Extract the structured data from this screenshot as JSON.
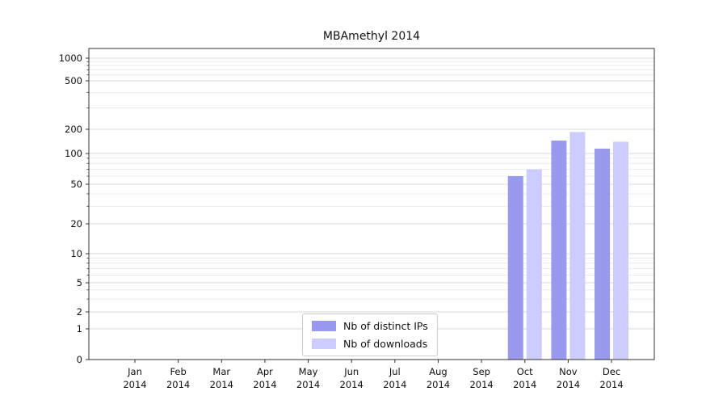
{
  "chart_data": {
    "type": "bar",
    "title": "MBAmethyl 2014",
    "categories": [
      "Jan 2014",
      "Feb 2014",
      "Mar 2014",
      "Apr 2014",
      "May 2014",
      "Jun 2014",
      "Jul 2014",
      "Aug 2014",
      "Sep 2014",
      "Oct 2014",
      "Nov 2014",
      "Dec 2014"
    ],
    "series": [
      {
        "name": "Nb of distinct IPs",
        "color": "#9999ee",
        "values": [
          0,
          0,
          0,
          0,
          0,
          0,
          0,
          0,
          0,
          60,
          145,
          115
        ]
      },
      {
        "name": "Nb of downloads",
        "color": "#ccccff",
        "values": [
          0,
          0,
          0,
          0,
          0,
          0,
          0,
          0,
          0,
          70,
          185,
          140
        ]
      }
    ],
    "y_axis": {
      "scale": "log",
      "tick_labels": [
        "0",
        "1",
        "2",
        "5",
        "10",
        "20",
        "50",
        "100",
        "200",
        "500",
        "1000"
      ],
      "tick_values": [
        0,
        1,
        2,
        5,
        10,
        20,
        50,
        100,
        200,
        500,
        1000
      ],
      "minor_tick_values": [
        3,
        4,
        6,
        7,
        8,
        9,
        30,
        40,
        60,
        70,
        80,
        90,
        300,
        400,
        600,
        700,
        800,
        900
      ],
      "range": [
        0,
        1000
      ]
    },
    "legend": {
      "position": "bottom-center"
    },
    "grid": "horizontal",
    "colors": {
      "grid_major": "#d9d9d9",
      "grid_minor": "#ebebeb",
      "axis": "#333333",
      "text": "#111111",
      "background": "#ffffff"
    }
  }
}
